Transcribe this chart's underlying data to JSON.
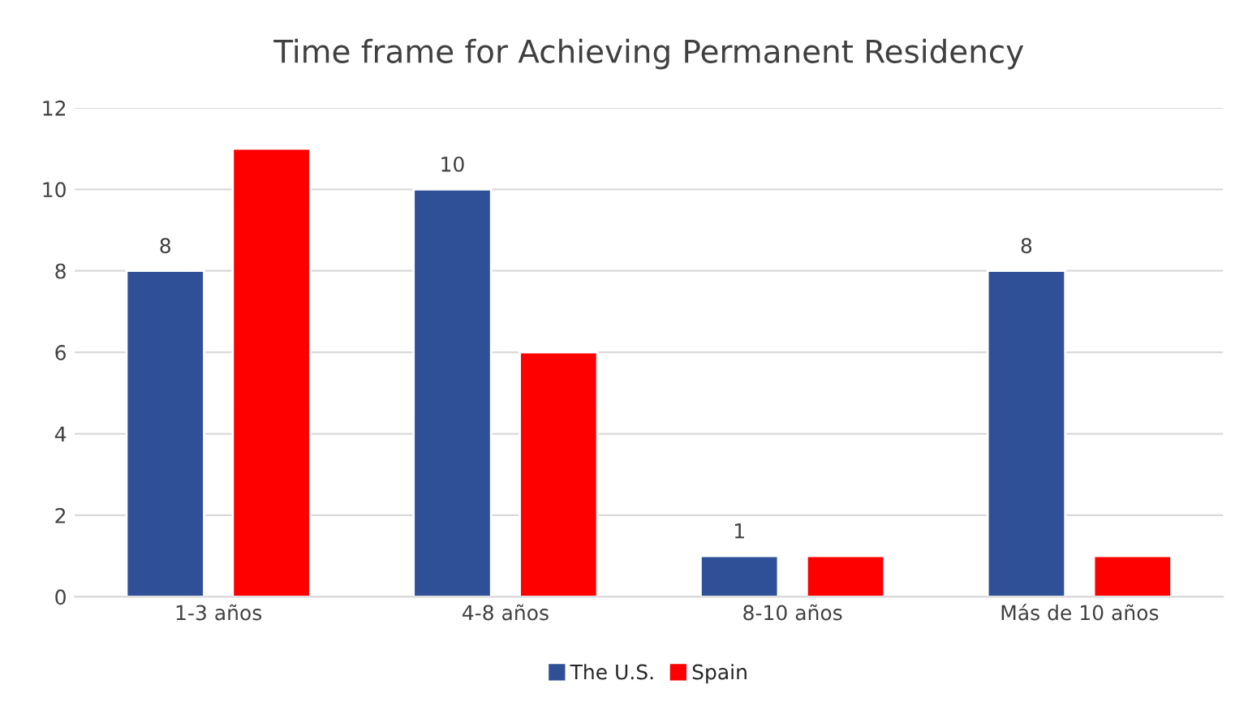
{
  "chart_data": {
    "type": "bar",
    "title": "Time frame for Achieving Permanent Residency",
    "categories": [
      "1-3 años",
      "4-8 años",
      "8-10 años",
      "Más de 10 años"
    ],
    "series": [
      {
        "name": "The U.S.",
        "color": "#2f5097",
        "values": [
          8,
          10,
          1,
          8
        ],
        "value_labels": [
          "8",
          "10",
          "1",
          "8"
        ]
      },
      {
        "name": "Spain",
        "color": "#ff0000",
        "values": [
          11,
          6,
          1,
          1
        ]
      }
    ],
    "ylim": [
      0,
      12
    ],
    "yticks": [
      0,
      2,
      4,
      6,
      8,
      10,
      12
    ],
    "grid": "y",
    "legend": "bottom"
  }
}
